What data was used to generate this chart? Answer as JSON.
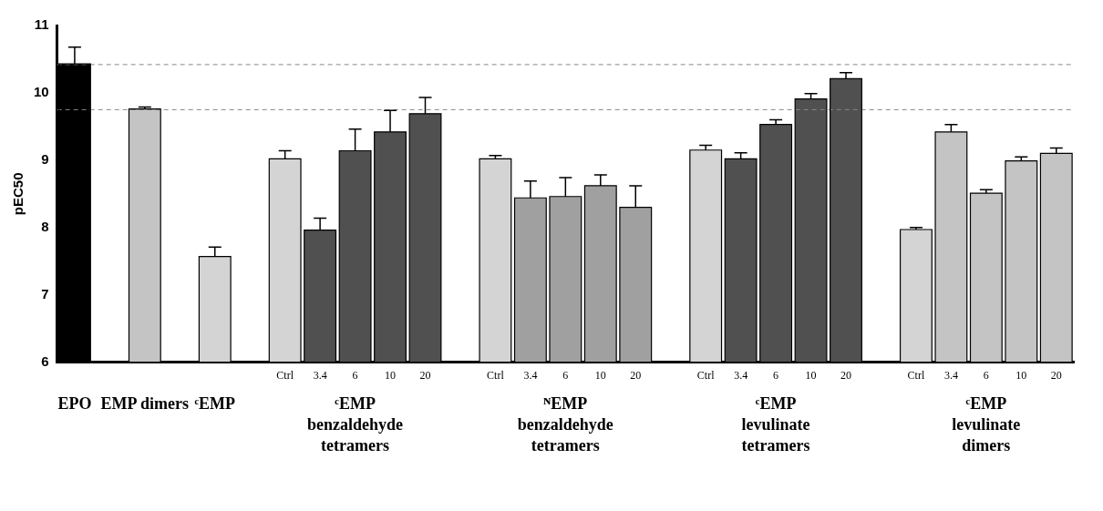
{
  "chart_data": {
    "type": "bar",
    "ylabel": "pEC50",
    "categories": [
      null,
      null,
      null,
      null,
      null,
      null,
      "Ctrl",
      "3.4",
      "6",
      "10",
      "20",
      null,
      "Ctrl",
      "3.4",
      "6",
      "10",
      "20",
      null,
      "Ctrl",
      "3.4",
      "6",
      "10",
      "20",
      null,
      "Ctrl",
      "3.4",
      "6",
      "10",
      "20"
    ],
    "values": [
      10.43,
      null,
      9.76,
      null,
      7.57,
      null,
      9.02,
      7.96,
      9.14,
      9.42,
      9.69,
      null,
      9.02,
      8.44,
      8.46,
      8.62,
      8.3,
      null,
      9.15,
      9.02,
      9.53,
      9.91,
      10.21,
      null,
      7.97,
      9.42,
      8.51,
      8.99,
      9.1
    ],
    "errors": [
      0.25,
      null,
      0.03,
      null,
      0.14,
      null,
      0.12,
      0.18,
      0.32,
      0.32,
      0.24,
      null,
      0.05,
      0.25,
      0.28,
      0.16,
      0.32,
      null,
      0.07,
      0.09,
      0.07,
      0.08,
      0.09,
      null,
      0.03,
      0.11,
      0.05,
      0.06,
      0.08
    ],
    "colors": [
      "#000000",
      null,
      "#c4c4c4",
      null,
      "#d4d4d4",
      null,
      "#d4d4d4",
      "#505050",
      "#505050",
      "#505050",
      "#505050",
      null,
      "#d4d4d4",
      "#a0a0a0",
      "#a0a0a0",
      "#a0a0a0",
      "#a0a0a0",
      null,
      "#d4d4d4",
      "#505050",
      "#505050",
      "#505050",
      "#505050",
      null,
      "#d4d4d4",
      "#c4c4c4",
      "#c4c4c4",
      "#c4c4c4",
      "#c4c4c4"
    ],
    "ylim": [
      6,
      11
    ],
    "yticks": [
      6,
      7,
      8,
      9,
      10,
      11
    ],
    "ref_lines": [
      {
        "axis": "y",
        "value": 10.42,
        "color": "#888888",
        "line_style": "dashed"
      },
      {
        "axis": "y",
        "value": 9.75,
        "color": "#888888",
        "line_style": "dashed"
      }
    ],
    "annotations": [
      "EPO",
      "EMP dimers",
      "ᶜEMP",
      "ᶜEMP benzaldehyde tetramers",
      "ᴺEMP benzaldehyde tetramers",
      "ᶜEMP levulinate tetramers",
      "ᶜEMP levulinate dimers"
    ],
    "grid": false,
    "legend": false
  }
}
